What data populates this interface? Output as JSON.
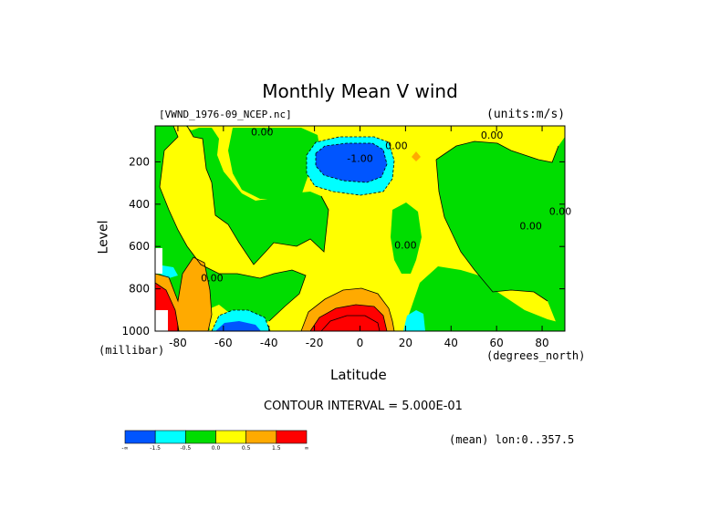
{
  "chart_data": {
    "type": "heatmap",
    "title": "Monthly Mean V wind",
    "dataset": "[VWND_1976-09_NCEP.nc]",
    "units": "(units:m/s)",
    "xlabel": "Latitude",
    "x_units": "(degrees_north)",
    "ylabel": "Level",
    "y_units": "(millibar)",
    "xlim": [
      -90,
      90
    ],
    "ylim": [
      1000,
      10
    ],
    "x_ticks": [
      {
        "value": -80,
        "label": "-80"
      },
      {
        "value": -60,
        "label": "-60"
      },
      {
        "value": -40,
        "label": "-40"
      },
      {
        "value": -20,
        "label": "-20"
      },
      {
        "value": 0,
        "label": "0"
      },
      {
        "value": 20,
        "label": "20"
      },
      {
        "value": 40,
        "label": "40"
      },
      {
        "value": 60,
        "label": "60"
      },
      {
        "value": 80,
        "label": "80"
      }
    ],
    "y_ticks": [
      {
        "value": 200,
        "label": "200"
      },
      {
        "value": 400,
        "label": "400"
      },
      {
        "value": 600,
        "label": "600"
      },
      {
        "value": 800,
        "label": "800"
      },
      {
        "value": 1000,
        "label": "1000"
      }
    ],
    "contour_interval_text": "CONTOUR INTERVAL = 5.000E-01",
    "contour_labels": [
      {
        "text": "0.00",
        "lat": -43,
        "level": 75
      },
      {
        "text": "-1.00",
        "lat": 0,
        "level": 200
      },
      {
        "text": "0.00",
        "lat": 16,
        "level": 140
      },
      {
        "text": "0.00",
        "lat": 58,
        "level": 90
      },
      {
        "text": "0.00",
        "lat": 20,
        "level": 610
      },
      {
        "text": "0.00",
        "lat": 75,
        "level": 520
      },
      {
        "text": "0.00",
        "lat": 88,
        "level": 450
      },
      {
        "text": "0.00",
        "lat": -65,
        "level": 765
      }
    ],
    "colorbar": {
      "colors": [
        "#0055ff",
        "#00ffff",
        "#00dd00",
        "#ffff00",
        "#ffaa00",
        "#ff0000"
      ],
      "tick_labels": [
        "-∞",
        "-1.5",
        "-0.5",
        "0.0",
        "0.5",
        "1.5",
        "∞"
      ]
    },
    "footer": "(mean) lon:0..357.5"
  }
}
